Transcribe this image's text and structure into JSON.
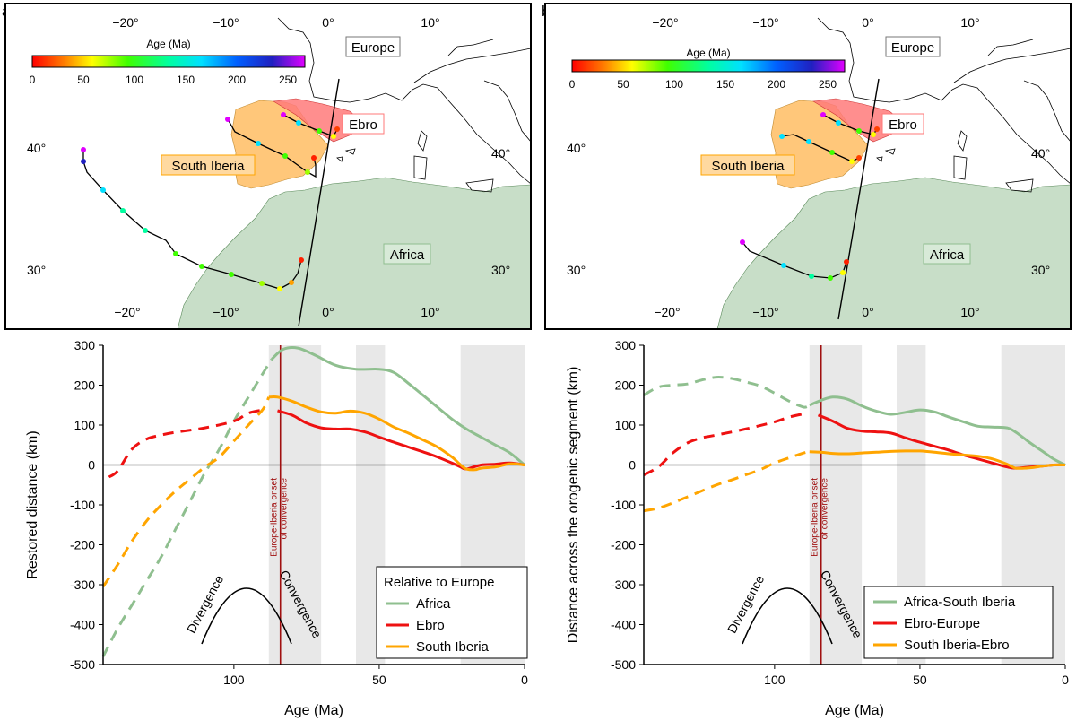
{
  "panels": [
    {
      "label": "a)",
      "map": {
        "colorbar": {
          "title": "Age (Ma)",
          "ticks": [
            "0",
            "50",
            "100",
            "150",
            "200",
            "250"
          ]
        },
        "lon_top": [
          "−20°",
          "−10°",
          "0°",
          "10°"
        ],
        "lon_bottom": [
          "−20°",
          "−10°",
          "0°",
          "10°"
        ],
        "lat_labels": [
          "40°",
          "30°",
          "40°",
          "30°"
        ],
        "regions": {
          "europe": "Europe",
          "ebro": "Ebro",
          "iberia": "South Iberia",
          "africa": "Africa"
        }
      }
    },
    {
      "label": "b)",
      "map": {
        "colorbar": {
          "title": "Age (Ma)",
          "ticks": [
            "0",
            "50",
            "100",
            "150",
            "200",
            "250"
          ]
        },
        "lon_top": [
          "−20°",
          "−10°",
          "0°",
          "10°"
        ],
        "lon_bottom": [
          "−20°",
          "−10°",
          "0°",
          "10°"
        ],
        "lat_labels": [
          "40°",
          "30°",
          "40°",
          "30°"
        ],
        "regions": {
          "europe": "Europe",
          "ebro": "Ebro",
          "iberia": "South Iberia",
          "africa": "Africa"
        }
      }
    }
  ],
  "chart_data": [
    {
      "type": "line",
      "xlabel": "Age (Ma)",
      "ylabel": "Restored distance (km)",
      "xlim": [
        145,
        0
      ],
      "ylim": [
        -500,
        300
      ],
      "xticks": [
        100,
        50,
        0
      ],
      "yticks": [
        300,
        200,
        100,
        0,
        -100,
        -200,
        -300,
        -400,
        -500
      ],
      "shaded_intervals_ma": [
        [
          88,
          70
        ],
        [
          58,
          48
        ],
        [
          22,
          0
        ]
      ],
      "vline": {
        "x": 84,
        "label": "Europe-Iberia onset\nof convergence"
      },
      "legend_title": "Relative to Europe",
      "series": [
        {
          "name": "Africa",
          "color": "#8fbf8f",
          "dashed_until": 87,
          "points": [
            [
              145,
              -480
            ],
            [
              140,
              -410
            ],
            [
              135,
              -350
            ],
            [
              130,
              -290
            ],
            [
              125,
              -230
            ],
            [
              120,
              -160
            ],
            [
              115,
              -90
            ],
            [
              110,
              -20
            ],
            [
              105,
              40
            ],
            [
              100,
              110
            ],
            [
              95,
              170
            ],
            [
              90,
              230
            ],
            [
              87,
              265
            ],
            [
              83,
              290
            ],
            [
              78,
              293
            ],
            [
              72,
              275
            ],
            [
              65,
              250
            ],
            [
              58,
              240
            ],
            [
              50,
              240
            ],
            [
              45,
              232
            ],
            [
              40,
              205
            ],
            [
              35,
              175
            ],
            [
              30,
              145
            ],
            [
              25,
              115
            ],
            [
              20,
              90
            ],
            [
              15,
              70
            ],
            [
              10,
              50
            ],
            [
              5,
              30
            ],
            [
              0,
              0
            ]
          ]
        },
        {
          "name": "Ebro",
          "color": "#ee1111",
          "dashed_until": 88,
          "points": [
            [
              143,
              -30
            ],
            [
              140,
              -15
            ],
            [
              135,
              40
            ],
            [
              130,
              65
            ],
            [
              125,
              75
            ],
            [
              120,
              82
            ],
            [
              110,
              93
            ],
            [
              100,
              110
            ],
            [
              95,
              130
            ],
            [
              90,
              138
            ],
            [
              85,
              136
            ],
            [
              80,
              125
            ],
            [
              75,
              105
            ],
            [
              70,
              93
            ],
            [
              65,
              90
            ],
            [
              60,
              90
            ],
            [
              55,
              83
            ],
            [
              50,
              70
            ],
            [
              45,
              57
            ],
            [
              40,
              45
            ],
            [
              35,
              33
            ],
            [
              30,
              20
            ],
            [
              25,
              5
            ],
            [
              22,
              -5
            ],
            [
              20,
              -10
            ],
            [
              15,
              0
            ],
            [
              10,
              2
            ],
            [
              5,
              5
            ],
            [
              0,
              0
            ]
          ]
        },
        {
          "name": "South Iberia",
          "color": "#ffa500",
          "dashed_until": 88,
          "points": [
            [
              145,
              -305
            ],
            [
              140,
              -250
            ],
            [
              135,
              -190
            ],
            [
              130,
              -140
            ],
            [
              125,
              -100
            ],
            [
              120,
              -65
            ],
            [
              115,
              -35
            ],
            [
              110,
              -5
            ],
            [
              105,
              20
            ],
            [
              100,
              60
            ],
            [
              95,
              100
            ],
            [
              90,
              140
            ],
            [
              88,
              170
            ],
            [
              85,
              170
            ],
            [
              80,
              160
            ],
            [
              75,
              145
            ],
            [
              70,
              133
            ],
            [
              65,
              130
            ],
            [
              60,
              135
            ],
            [
              55,
              130
            ],
            [
              50,
              115
            ],
            [
              45,
              95
            ],
            [
              40,
              80
            ],
            [
              35,
              63
            ],
            [
              30,
              45
            ],
            [
              25,
              20
            ],
            [
              22,
              0
            ],
            [
              20,
              -10
            ],
            [
              17,
              -12
            ],
            [
              15,
              -8
            ],
            [
              10,
              -5
            ],
            [
              5,
              3
            ],
            [
              0,
              0
            ]
          ]
        }
      ],
      "annotations": {
        "divergence": "Divergence",
        "convergence": "Convergence"
      }
    },
    {
      "type": "line",
      "xlabel": "Age (Ma)",
      "ylabel": "Distance across the orogenic segment (km)",
      "xlim": [
        145,
        0
      ],
      "ylim": [
        -500,
        300
      ],
      "xticks": [
        100,
        50,
        0
      ],
      "yticks": [
        300,
        200,
        100,
        0,
        -100,
        -200,
        -300,
        -400,
        -500
      ],
      "shaded_intervals_ma": [
        [
          88,
          70
        ],
        [
          58,
          48
        ],
        [
          22,
          0
        ]
      ],
      "vline": {
        "x": 84,
        "label": "Europe-Iberia onset\nof convergence"
      },
      "legend_title": "",
      "series": [
        {
          "name": "Africa-South Iberia",
          "color": "#8fbf8f",
          "dashed_until": 88,
          "points": [
            [
              145,
              175
            ],
            [
              140,
              195
            ],
            [
              135,
              200
            ],
            [
              130,
              203
            ],
            [
              125,
              213
            ],
            [
              120,
              220
            ],
            [
              115,
              217
            ],
            [
              110,
              208
            ],
            [
              105,
              198
            ],
            [
              100,
              180
            ],
            [
              95,
              160
            ],
            [
              90,
              145
            ],
            [
              88,
              150
            ],
            [
              84,
              162
            ],
            [
              80,
              170
            ],
            [
              75,
              165
            ],
            [
              70,
              148
            ],
            [
              65,
              135
            ],
            [
              60,
              127
            ],
            [
              55,
              132
            ],
            [
              50,
              138
            ],
            [
              45,
              133
            ],
            [
              40,
              120
            ],
            [
              35,
              108
            ],
            [
              30,
              97
            ],
            [
              25,
              95
            ],
            [
              20,
              93
            ],
            [
              17,
              82
            ],
            [
              12,
              55
            ],
            [
              8,
              35
            ],
            [
              4,
              15
            ],
            [
              0,
              0
            ]
          ]
        },
        {
          "name": "Ebro-Europe",
          "color": "#ee1111",
          "dashed_until": 88,
          "points": [
            [
              145,
              -25
            ],
            [
              140,
              -5
            ],
            [
              135,
              30
            ],
            [
              130,
              55
            ],
            [
              125,
              68
            ],
            [
              120,
              75
            ],
            [
              110,
              90
            ],
            [
              100,
              108
            ],
            [
              95,
              120
            ],
            [
              90,
              128
            ],
            [
              85,
              125
            ],
            [
              80,
              110
            ],
            [
              75,
              92
            ],
            [
              70,
              85
            ],
            [
              65,
              83
            ],
            [
              60,
              80
            ],
            [
              55,
              68
            ],
            [
              50,
              57
            ],
            [
              45,
              47
            ],
            [
              40,
              37
            ],
            [
              35,
              25
            ],
            [
              30,
              15
            ],
            [
              25,
              5
            ],
            [
              20,
              -5
            ],
            [
              17,
              -8
            ],
            [
              12,
              -5
            ],
            [
              8,
              -3
            ],
            [
              4,
              0
            ],
            [
              0,
              0
            ]
          ]
        },
        {
          "name": "South Iberia-Ebro",
          "color": "#ffa500",
          "dashed_until": 88,
          "points": [
            [
              145,
              -115
            ],
            [
              140,
              -108
            ],
            [
              135,
              -95
            ],
            [
              130,
              -80
            ],
            [
              125,
              -65
            ],
            [
              120,
              -50
            ],
            [
              115,
              -38
            ],
            [
              110,
              -25
            ],
            [
              105,
              -12
            ],
            [
              100,
              5
            ],
            [
              95,
              18
            ],
            [
              90,
              30
            ],
            [
              88,
              33
            ],
            [
              84,
              32
            ],
            [
              80,
              29
            ],
            [
              75,
              28
            ],
            [
              70,
              30
            ],
            [
              65,
              32
            ],
            [
              60,
              34
            ],
            [
              55,
              35
            ],
            [
              50,
              35
            ],
            [
              45,
              32
            ],
            [
              40,
              28
            ],
            [
              35,
              25
            ],
            [
              30,
              22
            ],
            [
              25,
              15
            ],
            [
              20,
              2
            ],
            [
              17,
              -8
            ],
            [
              12,
              -7
            ],
            [
              8,
              -3
            ],
            [
              4,
              0
            ],
            [
              0,
              0
            ]
          ]
        }
      ],
      "annotations": {
        "divergence": "Divergence",
        "convergence": "Convergence"
      }
    }
  ]
}
